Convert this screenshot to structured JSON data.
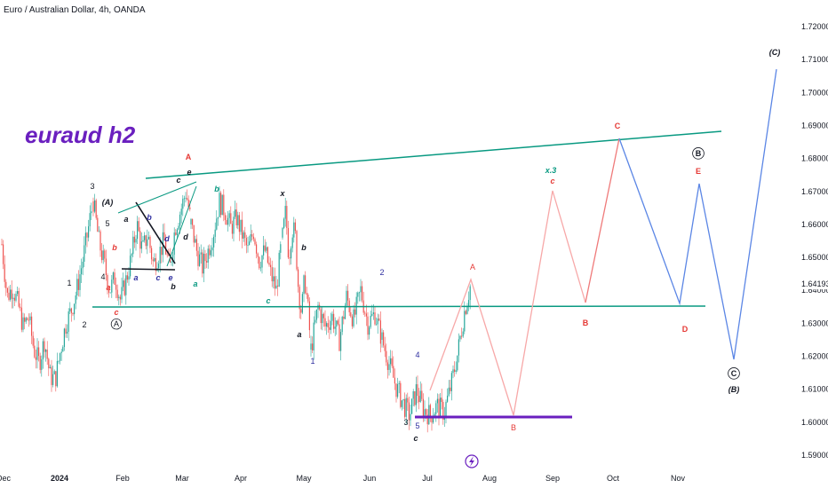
{
  "header": {
    "title": "Euro / Australian Dollar, 4h, OANDA"
  },
  "annotation_title": "euraud h2",
  "colors": {
    "up": "#26a69a",
    "down": "#ef5350",
    "teal": "#089981",
    "purple": "#6a1fbf",
    "red": "#e53935",
    "blue": "#5b86e5",
    "pink": "#f7a8a8",
    "black": "#131722"
  },
  "chart_data": {
    "type": "candlestick",
    "title": "",
    "ylim": [
      1.585,
      1.725
    ],
    "y_ticks": [
      "1.72000",
      "1.71000",
      "1.70000",
      "1.69000",
      "1.68000",
      "1.67000",
      "1.66000",
      "1.65000",
      "1.64000",
      "1.63000",
      "1.62000",
      "1.61000",
      "1.60000",
      "1.59000"
    ],
    "last_price": "1.64193",
    "x_ticks": [
      "Dec",
      "2024",
      "Feb",
      "Mar",
      "Apr",
      "May",
      "Jun",
      "Jul",
      "Aug",
      "Sep",
      "Oct",
      "Nov"
    ],
    "price_path": [
      [
        1.654,
        1.638,
        1.641,
        1.636,
        1.629,
        1.632,
        1.622,
        1.618,
        1.625,
        1.614,
        1.613,
        1.622,
        1.63,
        1.634,
        1.64,
        1.648,
        1.657,
        1.667
      ],
      [
        1.667,
        1.655,
        1.648,
        1.64,
        1.644,
        1.637,
        1.643,
        1.65,
        1.66,
        1.652,
        1.657,
        1.648,
        1.651,
        1.655,
        1.646,
        1.659,
        1.664,
        1.67,
        1.66
      ],
      [
        1.66,
        1.652,
        1.647,
        1.652,
        1.658,
        1.667,
        1.664,
        1.659,
        1.662,
        1.657,
        1.652,
        1.658,
        1.649,
        1.652,
        1.645,
        1.64,
        1.656
      ],
      [
        1.656,
        1.664,
        1.65,
        1.659,
        1.657,
        1.641,
        1.633,
        1.644,
        1.635,
        1.622
      ],
      [
        1.622,
        1.635,
        1.629,
        1.632,
        1.625,
        1.638,
        1.631,
        1.64,
        1.63,
        1.633,
        1.625
      ],
      [
        1.625,
        1.618,
        1.611,
        1.606,
        1.602,
        1.61,
        1.604,
        1.602,
        1.605,
        1.603,
        1.611,
        1.621,
        1.634,
        1.643
      ]
    ],
    "wave_labels": [
      {
        "text": "3",
        "color": "black"
      },
      {
        "text": "(A)",
        "color": "black"
      },
      {
        "text": "5",
        "color": "black"
      },
      {
        "text": "b",
        "color": "red"
      },
      {
        "text": "4",
        "color": "black"
      },
      {
        "text": "a",
        "color": "red"
      },
      {
        "text": "c",
        "color": "red"
      },
      {
        "text": "1",
        "color": "black"
      },
      {
        "text": "2",
        "color": "black"
      },
      {
        "text": "A",
        "color": "black",
        "circled": true
      },
      {
        "text": "a",
        "color": "black"
      },
      {
        "text": "b",
        "color": "navy"
      },
      {
        "text": "d",
        "color": "navy"
      },
      {
        "text": "a",
        "color": "navy"
      },
      {
        "text": "c",
        "color": "navy"
      },
      {
        "text": "e",
        "color": "navy"
      },
      {
        "text": "b",
        "color": "black"
      },
      {
        "text": "c",
        "color": "black"
      },
      {
        "text": "e",
        "color": "black"
      },
      {
        "text": "d",
        "color": "black"
      },
      {
        "text": "A",
        "color": "red"
      },
      {
        "text": "b",
        "color": "teal"
      },
      {
        "text": "a",
        "color": "teal"
      },
      {
        "text": "x",
        "color": "black"
      },
      {
        "text": "b",
        "color": "black"
      },
      {
        "text": "c",
        "color": "teal"
      },
      {
        "text": "a",
        "color": "black"
      },
      {
        "text": "1",
        "color": "navy"
      },
      {
        "text": "2",
        "color": "navy"
      },
      {
        "text": "4",
        "color": "navy"
      },
      {
        "text": "3",
        "color": "black"
      },
      {
        "text": "5",
        "color": "navy"
      },
      {
        "text": "c",
        "color": "black"
      },
      {
        "text": "A",
        "color": "pink"
      },
      {
        "text": "B",
        "color": "pink"
      },
      {
        "text": "x.3",
        "color": "teal"
      },
      {
        "text": "c",
        "color": "pink"
      },
      {
        "text": "C",
        "color": "red"
      },
      {
        "text": "B",
        "color": "red"
      },
      {
        "text": "B",
        "color": "black",
        "circled": true
      },
      {
        "text": "E",
        "color": "red"
      },
      {
        "text": "D",
        "color": "red"
      },
      {
        "text": "C",
        "color": "black",
        "circled": true
      },
      {
        "text": "(B)",
        "color": "black"
      },
      {
        "text": "(C)",
        "color": "black"
      }
    ]
  }
}
